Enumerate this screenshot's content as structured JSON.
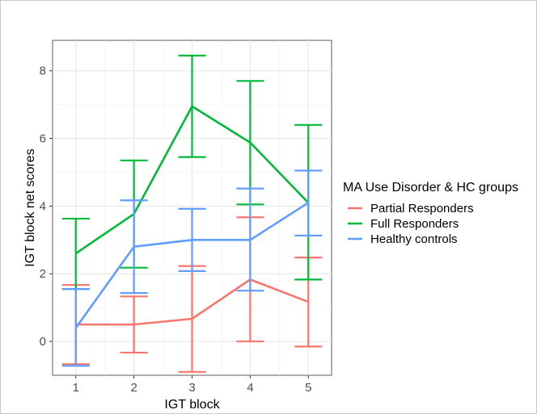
{
  "chart_data": {
    "type": "line",
    "xlabel": "IGT block",
    "ylabel": "IGT block net scores",
    "x": [
      1,
      2,
      3,
      4,
      5
    ],
    "xlim": [
      0.6,
      5.4
    ],
    "ylim": [
      -1.0,
      8.9
    ],
    "yticks": [
      0,
      2,
      4,
      6,
      8
    ],
    "grid": true,
    "legend": {
      "title": "MA Use Disorder & HC groups",
      "placement": "right"
    },
    "series": [
      {
        "name": "Partial Responders",
        "color": "#F8766D",
        "values": [
          0.5,
          0.5,
          0.67,
          1.83,
          1.17
        ],
        "err_low": [
          -0.67,
          -0.33,
          -0.9,
          0.0,
          -0.15
        ],
        "err_high": [
          1.67,
          1.33,
          2.23,
          3.67,
          2.48
        ]
      },
      {
        "name": "Full Responders",
        "color": "#00BA38",
        "values": [
          2.6,
          3.77,
          6.95,
          5.88,
          4.1
        ],
        "err_low": [
          1.55,
          2.18,
          5.45,
          4.05,
          1.83
        ],
        "err_high": [
          3.63,
          5.35,
          8.45,
          7.7,
          6.4
        ]
      },
      {
        "name": "Healthy controls",
        "color": "#619CFF",
        "values": [
          0.4,
          2.8,
          3.0,
          3.0,
          4.1
        ],
        "err_low": [
          -0.72,
          1.43,
          2.08,
          1.5,
          3.13
        ],
        "err_high": [
          1.55,
          4.17,
          3.92,
          4.52,
          5.05
        ]
      }
    ]
  }
}
